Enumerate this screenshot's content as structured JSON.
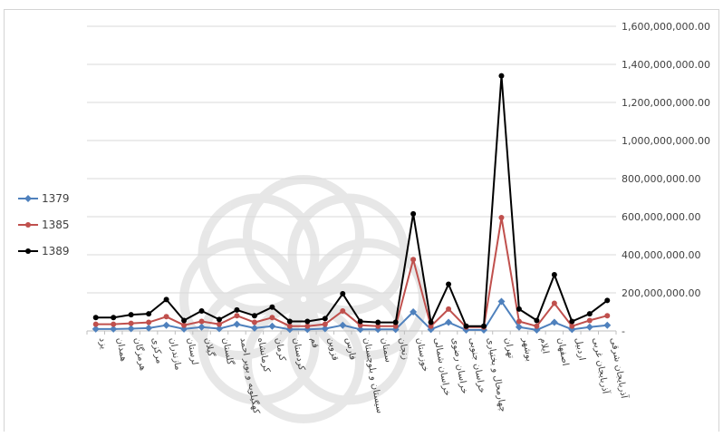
{
  "chart_data": {
    "type": "line",
    "categories": [
      "یزد",
      "همدان",
      "هرمزگان",
      "مرکزی",
      "مازندران",
      "لرستان",
      "گیلان",
      "گلستان",
      "کهگیلویه و بویر احمد",
      "کرمانشاه",
      "کرمان",
      "کردستان",
      "قم",
      "قزوین",
      "فارس",
      "سیستان و بلوچستان",
      "سمنان",
      "زنجان",
      "خوزستان",
      "خراسان شمالی",
      "خراسان رضوی",
      "خراسان جنوبی",
      "چهارمحال و بختیاری",
      "تهران",
      "بوشهر",
      "ایلام",
      "اصفهان",
      "اردبیل",
      "آذربایجان غربی",
      "آذربایجان شرقی"
    ],
    "series": [
      {
        "name": "1379",
        "color": "#4f81bd",
        "marker": "diamond",
        "values": [
          10000000,
          10000000,
          12000000,
          15000000,
          30000000,
          10000000,
          20000000,
          12000000,
          35000000,
          15000000,
          25000000,
          8000000,
          8000000,
          12000000,
          30000000,
          8000000,
          8000000,
          8000000,
          100000000,
          8000000,
          45000000,
          5000000,
          5000000,
          155000000,
          20000000,
          5000000,
          45000000,
          8000000,
          20000000,
          30000000
        ]
      },
      {
        "name": "1385",
        "color": "#c0504d",
        "marker": "circle",
        "values": [
          35000000,
          35000000,
          40000000,
          45000000,
          75000000,
          30000000,
          50000000,
          35000000,
          80000000,
          45000000,
          70000000,
          25000000,
          25000000,
          35000000,
          105000000,
          30000000,
          25000000,
          25000000,
          375000000,
          25000000,
          115000000,
          20000000,
          20000000,
          595000000,
          50000000,
          25000000,
          145000000,
          25000000,
          55000000,
          80000000
        ]
      },
      {
        "name": "1389",
        "color": "#000000",
        "marker": "circle",
        "values": [
          70000000,
          70000000,
          85000000,
          90000000,
          165000000,
          55000000,
          105000000,
          60000000,
          110000000,
          80000000,
          125000000,
          50000000,
          50000000,
          65000000,
          195000000,
          50000000,
          45000000,
          45000000,
          615000000,
          45000000,
          245000000,
          25000000,
          25000000,
          1340000000,
          115000000,
          55000000,
          295000000,
          50000000,
          90000000,
          160000000
        ]
      }
    ],
    "y_ticks": [
      "-",
      "200,000,000.00",
      "400,000,000.00",
      "600,000,000.00",
      "800,000,000.00",
      "1,000,000,000.00",
      "1,200,000,000.00",
      "1,400,000,000.00",
      "1,600,000,000.00"
    ],
    "ylim": [
      0,
      1600000000
    ],
    "y_axis_position": "right",
    "grid": true,
    "legend_position": "left",
    "title": "",
    "xlabel": "",
    "ylabel": ""
  }
}
